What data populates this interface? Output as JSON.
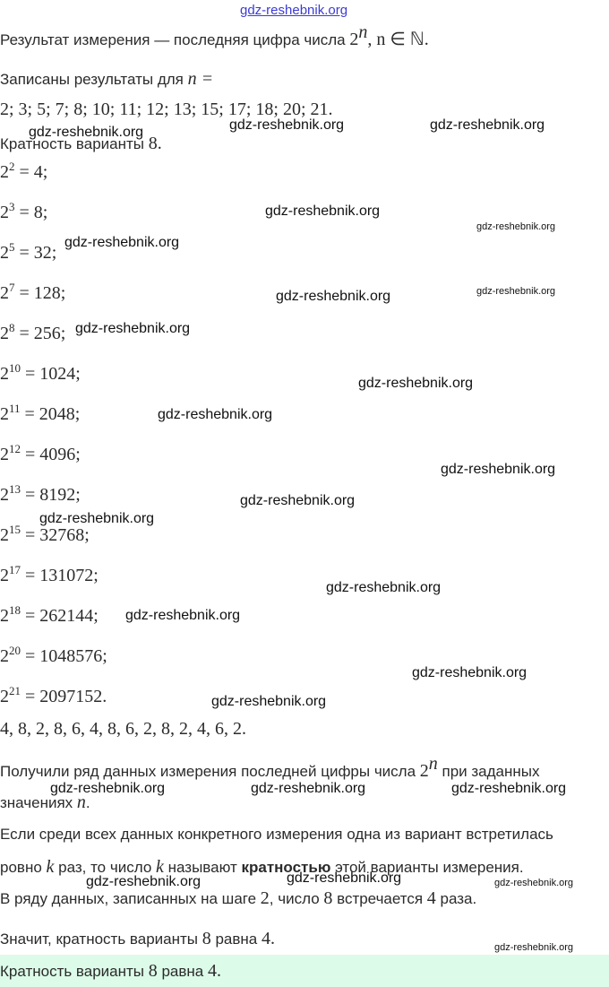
{
  "header_link": "gdz-reshebnik.org",
  "watermark": "gdz-reshebnik.org",
  "intro": {
    "text": "Результат измерения — последняя цифра числа ",
    "math": "2",
    "sup": "n",
    "rest": ", n ∈ ℕ."
  },
  "recorded": {
    "text": "Записаны результаты для ",
    "math": "n ="
  },
  "n_values": "2;  3;  5;  7;  8;  10;  11;  12;  13;  15;  17;  18;  20;  21.",
  "variant_title": {
    "text": "Кратность варианты ",
    "math": "8."
  },
  "equations": [
    {
      "exp": "2",
      "value": "= 4;"
    },
    {
      "exp": "3",
      "value": "= 8;"
    },
    {
      "exp": "5",
      "value": "= 32;"
    },
    {
      "exp": "7",
      "value": "= 128;"
    },
    {
      "exp": "8",
      "value": "= 256;"
    },
    {
      "exp": "10",
      "value": "= 1024;"
    },
    {
      "exp": "11",
      "value": "= 2048;"
    },
    {
      "exp": "12",
      "value": "= 4096;"
    },
    {
      "exp": "13",
      "value": "= 8192;"
    },
    {
      "exp": "15",
      "value": "= 32768;"
    },
    {
      "exp": "17",
      "value": "= 131072;"
    },
    {
      "exp": "18",
      "value": "= 262144;"
    },
    {
      "exp": "20",
      "value": "= 1048576;"
    },
    {
      "exp": "21",
      "value": "= 2097152."
    }
  ],
  "digits": "4,  8,  2,  8,  6,  4,  8,  6,  2,  8,  2,  4,  6,  2.",
  "para1": {
    "a": "Получили ряд данных измерения последней цифры числа ",
    "sup": "n",
    "b": " при заданных",
    "c": "значениях ",
    "d": "n",
    "e": "."
  },
  "para2": {
    "line1": "Если среди всех данных конкретного измерения одна из вариант встретилась",
    "a": "ровно ",
    "k": "k",
    "b": " раз, то число ",
    "c": " называют ",
    "bold": "кратностью",
    "d": " этой варианты измерения."
  },
  "para3": {
    "a": "В ряду данных, записанных на шаге ",
    "n1": "2",
    "b": ", число ",
    "n2": "8",
    "c": " встречается ",
    "n3": "4",
    "d": " раза."
  },
  "conclusion": {
    "a": "Значит, кратность варианты ",
    "n1": "8",
    "b": " равна ",
    "n2": "4."
  },
  "answer": {
    "a": "Кратность варианты ",
    "n1": "8",
    "b": " равна ",
    "n2": "4."
  }
}
